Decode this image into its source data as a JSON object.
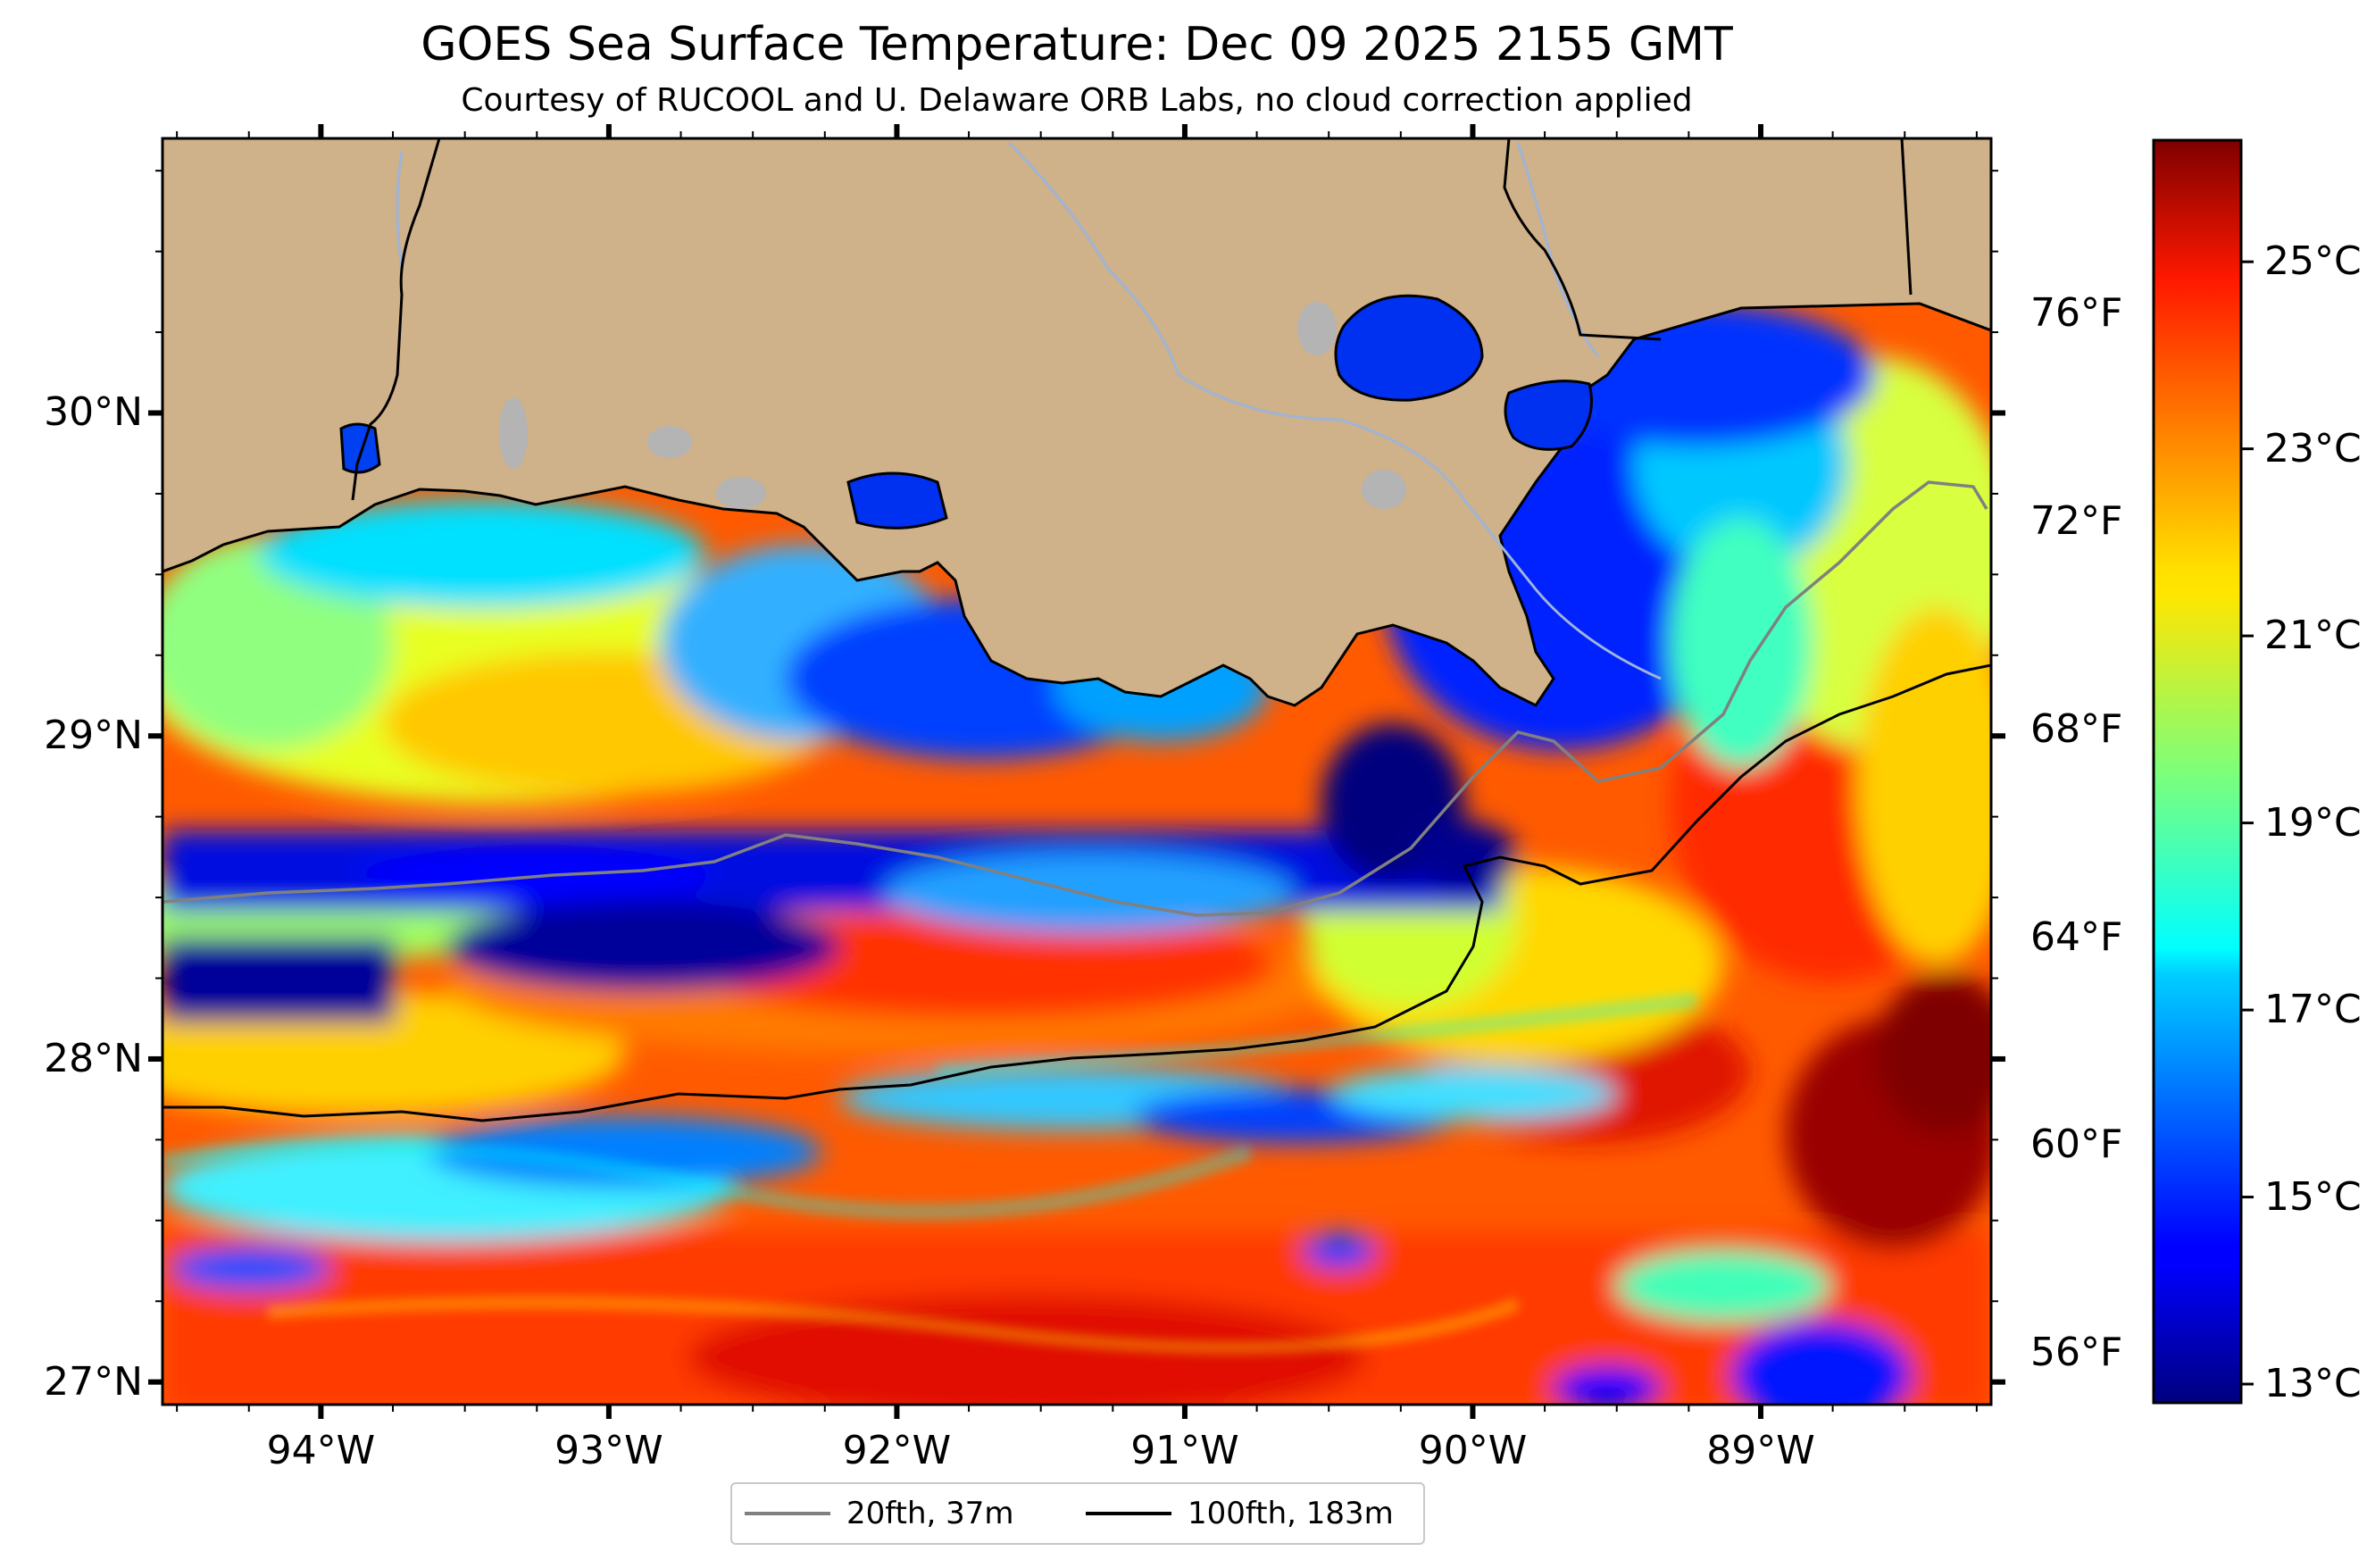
{
  "title": "GOES Sea Surface Temperature: Dec 09 2025 2155 GMT",
  "subtitle": "Courtesy of RUCOOL and U. Delaware ORB Labs, no cloud correction applied",
  "map": {
    "lon_range": [
      -94.55,
      -88.2
    ],
    "lat_range": [
      26.93,
      30.85
    ],
    "longitude_ticks": [
      {
        "value": -94,
        "label": "94°W"
      },
      {
        "value": -93,
        "label": "93°W"
      },
      {
        "value": -92,
        "label": "92°W"
      },
      {
        "value": -91,
        "label": "91°W"
      },
      {
        "value": -90,
        "label": "90°W"
      },
      {
        "value": -89,
        "label": "89°W"
      }
    ],
    "latitude_ticks": [
      {
        "value": 27,
        "label": "27°N"
      },
      {
        "value": 28,
        "label": "28°N"
      },
      {
        "value": 29,
        "label": "29°N"
      },
      {
        "value": 30,
        "label": "30°N"
      }
    ],
    "fahrenheit_ticks": [
      {
        "value": 56,
        "label": "56°F"
      },
      {
        "value": 60,
        "label": "60°F"
      },
      {
        "value": 64,
        "label": "64°F"
      },
      {
        "value": 68,
        "label": "68°F"
      },
      {
        "value": 72,
        "label": "72°F"
      },
      {
        "value": 76,
        "label": "76°F"
      }
    ],
    "land_color": "#cfb18a",
    "lake_color": "#b4b4b4",
    "river_color": "#9fb4d6"
  },
  "colorbar": {
    "range_c": [
      12.8,
      26.3
    ],
    "colormap": "jet",
    "ticks": [
      {
        "value": 13,
        "label": "13°C"
      },
      {
        "value": 15,
        "label": "15°C"
      },
      {
        "value": 17,
        "label": "17°C"
      },
      {
        "value": 19,
        "label": "19°C"
      },
      {
        "value": 21,
        "label": "21°C"
      },
      {
        "value": 23,
        "label": "23°C"
      },
      {
        "value": 25,
        "label": "25°C"
      }
    ]
  },
  "legend": {
    "items": [
      {
        "label": "20fth, 37m",
        "color": "#808080"
      },
      {
        "label": "100fth, 183m",
        "color": "#000000"
      }
    ]
  }
}
